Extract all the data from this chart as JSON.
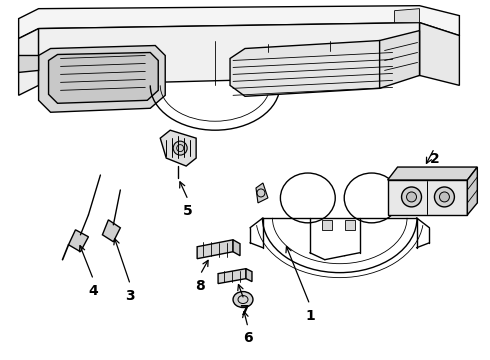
{
  "bg_color": "#ffffff",
  "line_color": "#000000",
  "fig_width": 4.9,
  "fig_height": 3.6,
  "dpi": 100,
  "label_fontsize": 10,
  "arrow_color": "#000000",
  "label_color": "#000000"
}
